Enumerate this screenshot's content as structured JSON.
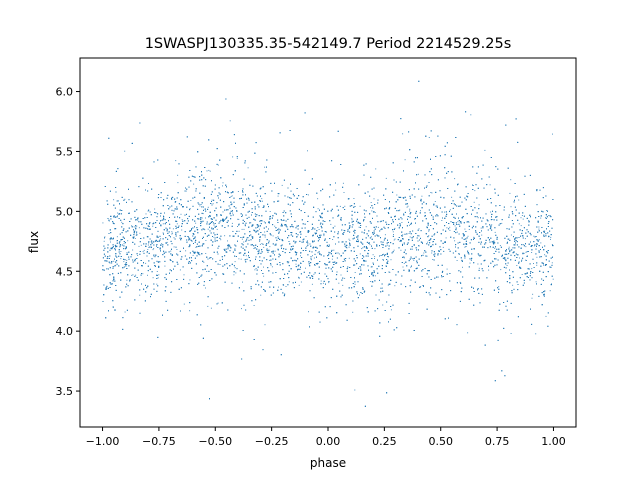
{
  "chart_data": {
    "type": "scatter",
    "title": "1SWASPJ130335.35-542149.7 Period 2214529.25s",
    "xlabel": "phase",
    "ylabel": "flux",
    "xlim": [
      -1.1,
      1.1
    ],
    "ylim": [
      3.2,
      6.28
    ],
    "xticks": [
      -1.0,
      -0.75,
      -0.5,
      -0.25,
      0.0,
      0.25,
      0.5,
      0.75,
      1.0
    ],
    "xtick_labels": [
      "−1.00",
      "−0.75",
      "−0.50",
      "−0.25",
      "0.00",
      "0.25",
      "0.50",
      "0.75",
      "1.00"
    ],
    "yticks": [
      3.5,
      4.0,
      4.5,
      5.0,
      5.5,
      6.0
    ],
    "ytick_labels": [
      "3.5",
      "4.0",
      "4.5",
      "5.0",
      "5.5",
      "6.0"
    ],
    "grid": false,
    "legend": "none",
    "series": [
      {
        "color": "#1f77b4",
        "x_range": [
          -1.0,
          1.0
        ],
        "points_shown": 9000,
        "shape": {
          "x": [
            -1.0,
            -0.9,
            -0.8,
            -0.7,
            -0.6,
            -0.5,
            -0.4,
            -0.3,
            -0.2,
            -0.1,
            0.0,
            0.1,
            0.2,
            0.3,
            0.4,
            0.5,
            0.6,
            0.7,
            0.8,
            0.9,
            1.0
          ],
          "median_flux": [
            4.68,
            4.68,
            4.72,
            4.78,
            4.84,
            4.88,
            4.83,
            4.78,
            4.73,
            4.7,
            4.68,
            4.68,
            4.72,
            4.78,
            4.84,
            4.88,
            4.83,
            4.78,
            4.73,
            4.7,
            4.68
          ],
          "spread": [
            0.22,
            0.22,
            0.23,
            0.24,
            0.25,
            0.26,
            0.25,
            0.24,
            0.23,
            0.22,
            0.22,
            0.22,
            0.23,
            0.24,
            0.25,
            0.26,
            0.25,
            0.24,
            0.23,
            0.22,
            0.22
          ]
        },
        "flux_min": 3.35,
        "flux_max": 6.15
      }
    ]
  }
}
